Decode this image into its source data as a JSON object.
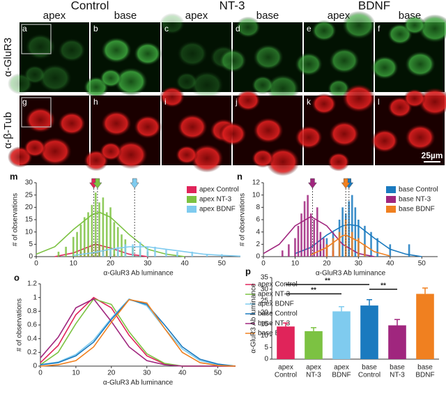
{
  "figure": {
    "column_groups": [
      "Control",
      "NT-3",
      "BDNF"
    ],
    "sub_labels": [
      "apex",
      "base",
      "apex",
      "base",
      "apex",
      "base"
    ],
    "row_labels": [
      "α-GluR3",
      "α-β-Tub"
    ],
    "panels": [
      "a",
      "b",
      "c",
      "d",
      "e",
      "f",
      "g",
      "h",
      "i",
      "j",
      "k",
      "l"
    ],
    "scale_bar": "25µm"
  },
  "chart_data": [
    {
      "type": "histogram",
      "panel": "m",
      "xlabel": "α-GluR3 Ab luminance",
      "ylabel": "# of observations",
      "xlim": [
        0,
        55
      ],
      "xticks": [
        0,
        10,
        20,
        30,
        40,
        50
      ],
      "ylim": [
        0,
        30
      ],
      "yticks": [
        0,
        5,
        10,
        15,
        20,
        25,
        30
      ],
      "series": [
        {
          "name": "apex Control",
          "color": "#e0245a",
          "mean": 15.5,
          "x": [
            12,
            13,
            14,
            15,
            16,
            17,
            18,
            19,
            20,
            21
          ],
          "values": [
            2,
            3,
            4,
            5,
            6,
            5,
            4,
            3,
            2,
            1
          ],
          "fit_x": [
            5,
            10,
            15,
            16,
            20,
            25,
            30
          ],
          "fit_y": [
            0,
            1.5,
            4.5,
            5,
            3.5,
            1,
            0
          ]
        },
        {
          "name": "apex NT-3",
          "color": "#7cc242",
          "mean": 16.5,
          "x": [
            6,
            8,
            10,
            11,
            12,
            13,
            14,
            15,
            16,
            17,
            18,
            19,
            20,
            21,
            22,
            23,
            24,
            26,
            28,
            30
          ],
          "values": [
            2,
            4,
            8,
            10,
            13,
            16,
            18,
            21,
            26,
            22,
            24,
            18,
            20,
            14,
            12,
            9,
            7,
            4,
            3,
            2
          ],
          "fit_x": [
            0,
            5,
            10,
            15,
            17,
            20,
            25,
            30,
            35,
            40
          ],
          "fit_y": [
            1,
            4,
            11,
            17,
            18,
            16,
            9,
            3,
            1,
            0
          ]
        },
        {
          "name": "apex BDNF",
          "color": "#7fcbef",
          "mean": 26.5,
          "x": [
            18,
            20,
            22,
            24,
            26,
            28,
            30,
            32,
            35,
            38,
            42,
            46,
            50
          ],
          "values": [
            2,
            3,
            4,
            5,
            5,
            6,
            4,
            4,
            3,
            2,
            2,
            1,
            1
          ],
          "fit_x": [
            10,
            15,
            20,
            25,
            30,
            35,
            40,
            45,
            50,
            55
          ],
          "fit_y": [
            0.5,
            1.5,
            3,
            4,
            4,
            3,
            2,
            1,
            0.5,
            0.2
          ]
        }
      ]
    },
    {
      "type": "histogram",
      "panel": "n",
      "xlabel": "α-GluR3 Ab luminance",
      "ylabel": "# of observations",
      "xlim": [
        0,
        55
      ],
      "xticks": [
        0,
        10,
        20,
        30,
        40,
        50
      ],
      "ylim": [
        0,
        12
      ],
      "yticks": [
        0,
        2,
        4,
        6,
        8,
        10,
        12
      ],
      "series": [
        {
          "name": "base Control",
          "color": "#1a7abf",
          "mean": 27,
          "x": [
            18,
            20,
            22,
            24,
            25,
            26,
            27,
            28,
            29,
            30,
            32,
            34,
            36,
            40,
            46
          ],
          "values": [
            2,
            3,
            4,
            6,
            8,
            7,
            9,
            10,
            8,
            6,
            5,
            4,
            3,
            2,
            2
          ],
          "fit_x": [
            10,
            15,
            20,
            25,
            27,
            30,
            35,
            40,
            45,
            50
          ],
          "fit_y": [
            0.5,
            1.5,
            3.5,
            5,
            5.2,
            5,
            3,
            1.2,
            0.4,
            0
          ]
        },
        {
          "name": "base NT-3",
          "color": "#a0267e",
          "mean": 15.5,
          "x": [
            6,
            8,
            10,
            11,
            12,
            13,
            14,
            15,
            16,
            17,
            18,
            19,
            20,
            22
          ],
          "values": [
            1,
            2,
            3,
            5,
            7,
            9,
            10,
            7,
            6,
            8,
            4,
            3,
            2,
            1
          ],
          "fit_x": [
            0,
            5,
            10,
            15,
            20,
            25,
            30,
            35
          ],
          "fit_y": [
            0.5,
            2,
            5,
            6.5,
            5,
            2,
            0.5,
            0
          ]
        },
        {
          "name": "base BDNF",
          "color": "#f08020",
          "mean": 26,
          "x": [
            20,
            22,
            24,
            26,
            28,
            30,
            32
          ],
          "values": [
            2,
            3,
            4,
            6,
            4,
            3,
            2
          ],
          "fit_x": [
            15,
            20,
            25,
            26,
            30,
            35,
            40
          ],
          "fit_y": [
            0.3,
            1.5,
            3.4,
            3.5,
            2.5,
            0.8,
            0.1
          ]
        }
      ]
    },
    {
      "type": "line",
      "panel": "o",
      "xlabel": "α-GluR3 Ab luminance",
      "ylabel": "# of observations",
      "xlim": [
        0,
        55
      ],
      "xticks": [
        0,
        10,
        20,
        30,
        40,
        50
      ],
      "ylim": [
        0,
        1.2
      ],
      "yticks": [
        0,
        0.2,
        0.4,
        0.6,
        0.8,
        1,
        1.2
      ],
      "x": [
        0,
        5,
        10,
        15,
        20,
        25,
        30,
        35,
        40,
        45,
        50,
        55
      ],
      "series": [
        {
          "name": "apex Control",
          "color": "#e0245a",
          "values": [
            0.05,
            0.3,
            0.75,
            1.0,
            0.85,
            0.45,
            0.15,
            0.03,
            0,
            0,
            0,
            0
          ]
        },
        {
          "name": "apex NT-3",
          "color": "#7cc242",
          "values": [
            0.02,
            0.2,
            0.62,
            0.98,
            0.9,
            0.5,
            0.18,
            0.04,
            0,
            0,
            0,
            0
          ]
        },
        {
          "name": "apex BDNF",
          "color": "#7fcbef",
          "values": [
            0.02,
            0.06,
            0.17,
            0.38,
            0.7,
            0.98,
            0.88,
            0.55,
            0.25,
            0.08,
            0.02,
            0
          ]
        },
        {
          "name": "base Control",
          "color": "#1a7abf",
          "values": [
            0.02,
            0.05,
            0.15,
            0.35,
            0.68,
            0.97,
            0.9,
            0.6,
            0.28,
            0.1,
            0.03,
            0
          ]
        },
        {
          "name": "base NT-3",
          "color": "#a0267e",
          "values": [
            0.12,
            0.42,
            0.85,
            0.98,
            0.65,
            0.28,
            0.08,
            0.02,
            0,
            0,
            0,
            0
          ]
        },
        {
          "name": "base BDNF",
          "color": "#f08020",
          "values": [
            0,
            0.02,
            0.08,
            0.28,
            0.64,
            0.97,
            0.92,
            0.55,
            0.2,
            0.05,
            0.01,
            0
          ]
        }
      ]
    },
    {
      "type": "bar",
      "panel": "p",
      "ylabel": "α-GluR3 Ab luminance",
      "ylim": [
        0,
        35
      ],
      "yticks": [
        0,
        5,
        10,
        15,
        20,
        25,
        30,
        35
      ],
      "categories": [
        [
          "apex",
          "Control"
        ],
        [
          "apex",
          "NT-3"
        ],
        [
          "apex",
          "BDNF"
        ],
        [
          "base",
          "Control"
        ],
        [
          "base",
          "NT-3"
        ],
        [
          "base",
          "BDNF"
        ]
      ],
      "values": [
        14,
        12,
        20.5,
        23,
        14.5,
        28
      ],
      "errors": [
        1.5,
        1.5,
        2,
        2.5,
        2.5,
        2.5
      ],
      "colors": [
        "#e0245a",
        "#7cc242",
        "#7fcbef",
        "#1a7abf",
        "#a0267e",
        "#f08020"
      ],
      "significance": [
        "**",
        "**",
        "**"
      ]
    }
  ]
}
